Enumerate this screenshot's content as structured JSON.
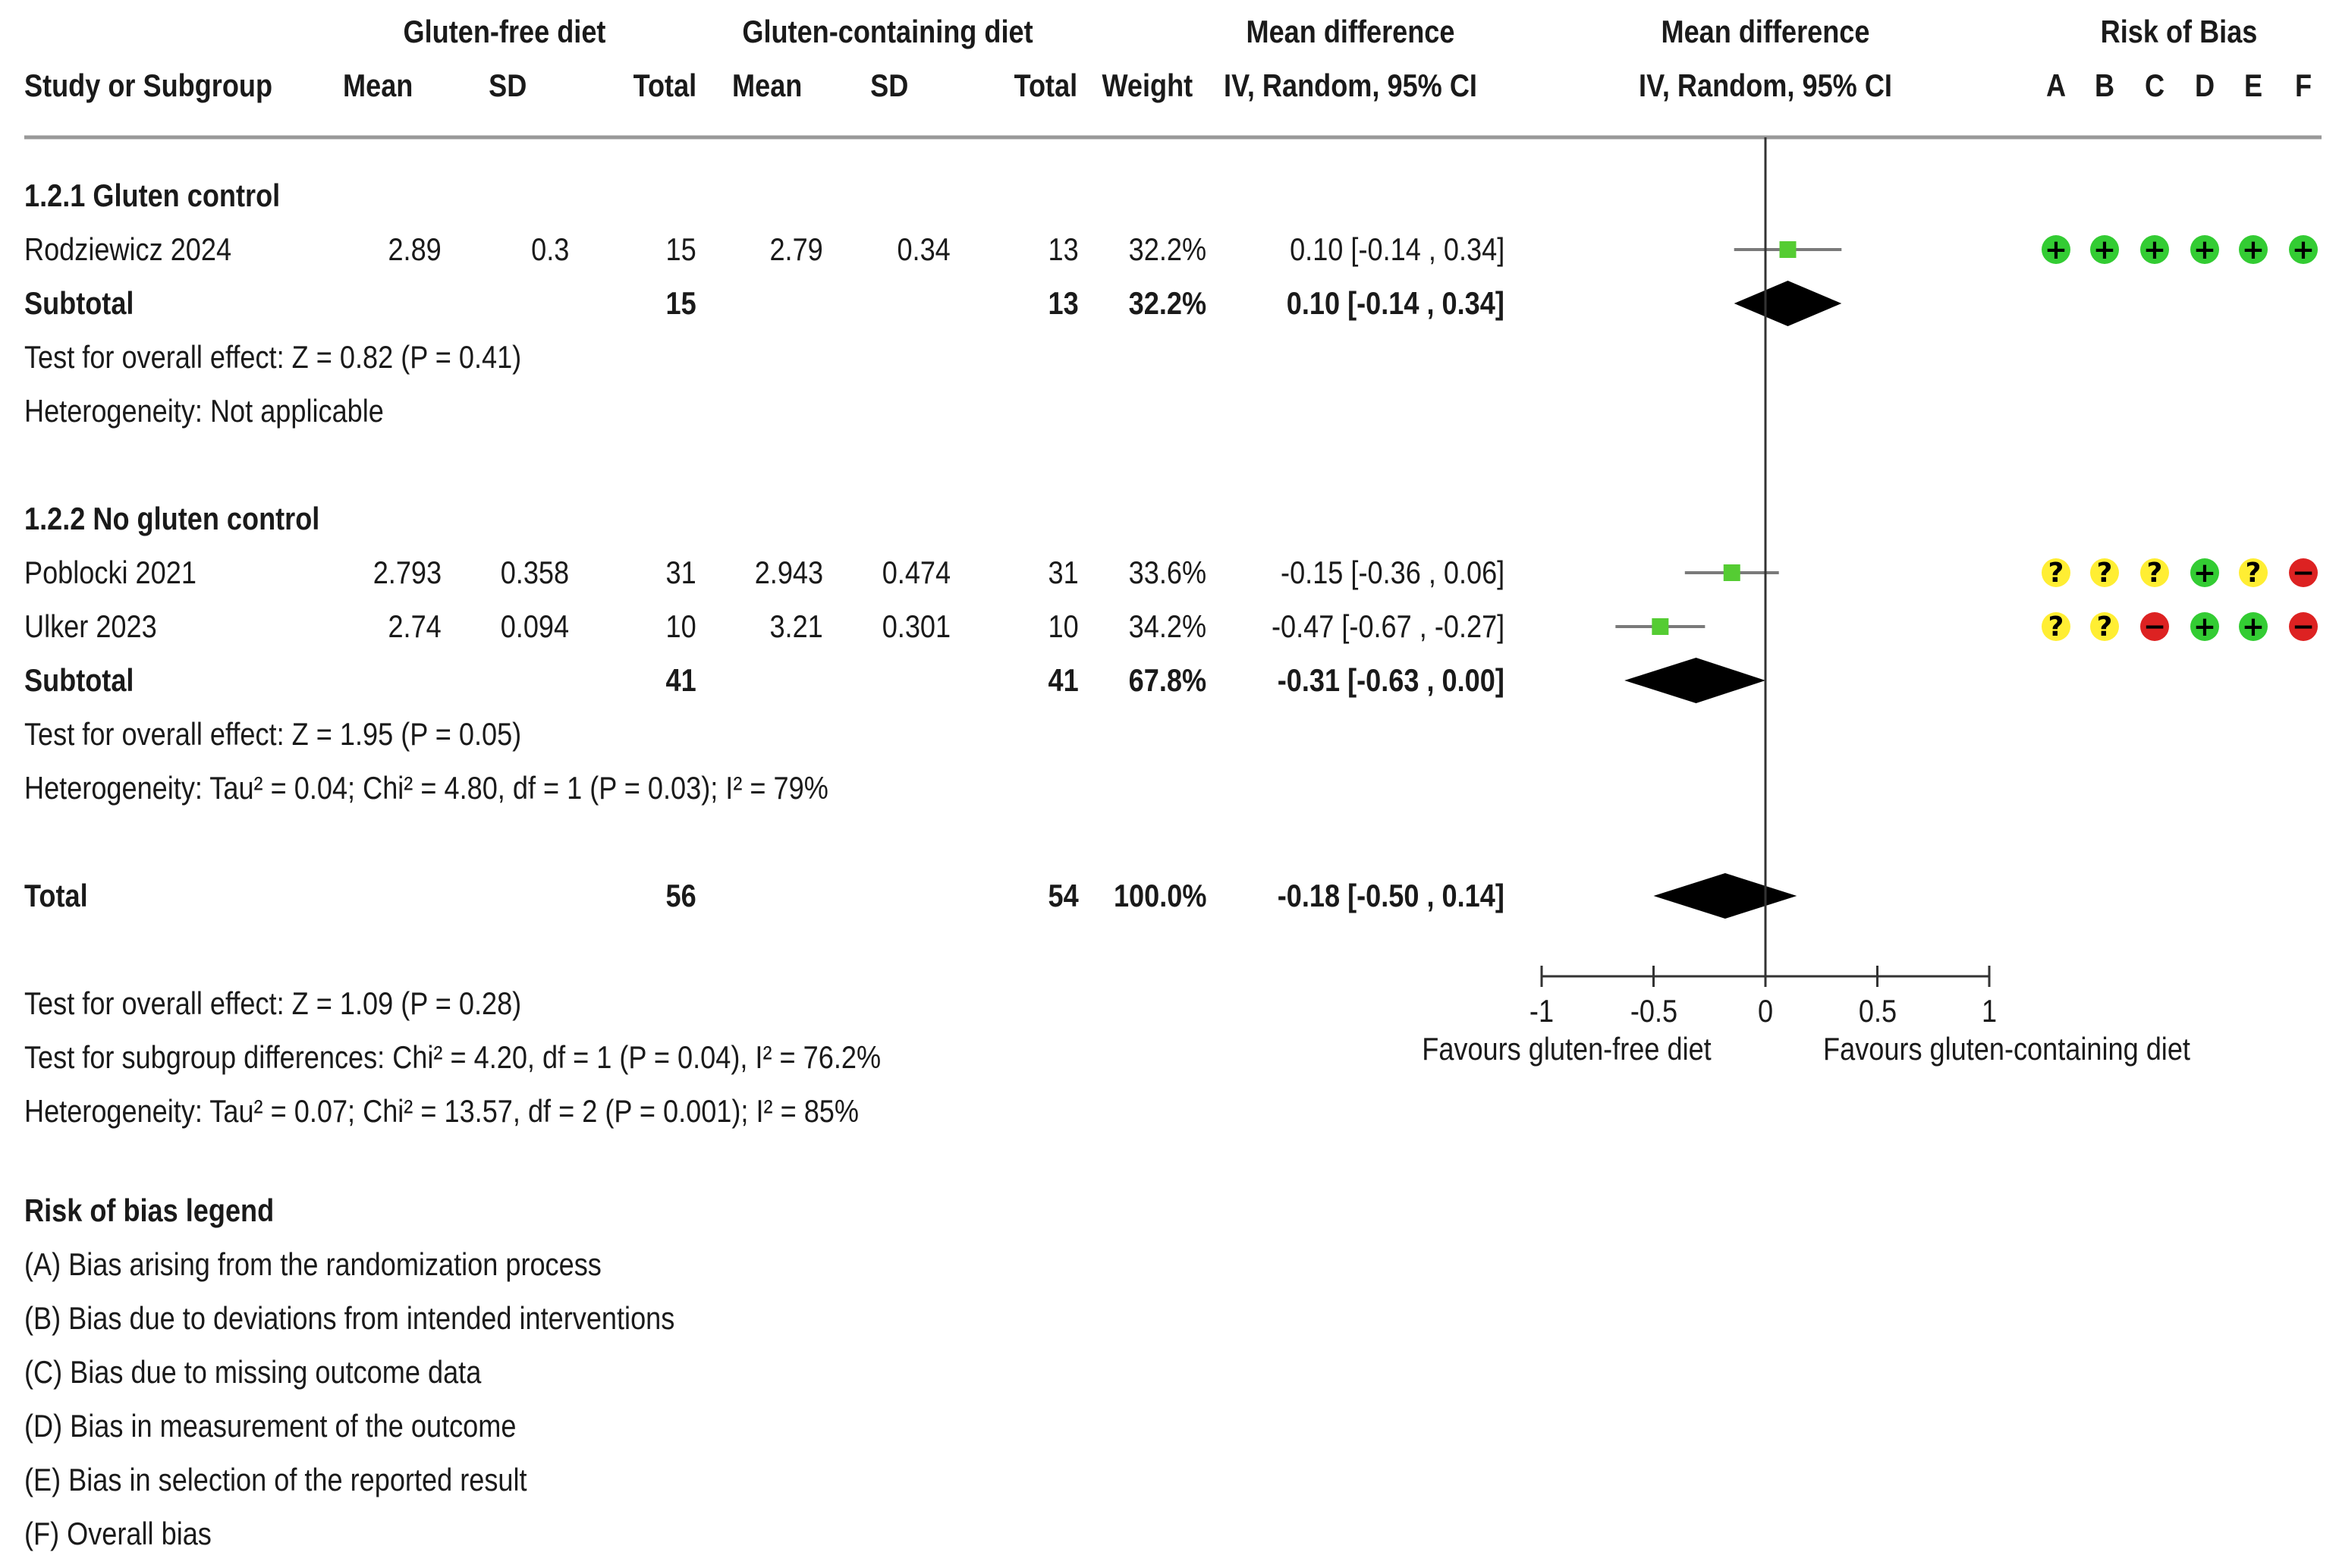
{
  "chart_data": {
    "type": "forest",
    "header": {
      "group1": "Gluten-free diet",
      "group2": "Gluten-containing diet",
      "md_top": "Mean difference",
      "md_top2": "Mean difference",
      "rob_title": "Risk of Bias",
      "study": "Study or Subgroup",
      "mean1": "Mean",
      "sd1": "SD",
      "total1": "Total",
      "mean2": "Mean",
      "sd2": "SD",
      "total2": "Total",
      "weight": "Weight",
      "md_sub": "IV, Random, 95% CI",
      "md_sub2": "IV, Random, 95% CI",
      "rob_letters": [
        "A",
        "B",
        "C",
        "D",
        "E",
        "F"
      ]
    },
    "subgroups": [
      {
        "title": "1.2.1 Gluten control",
        "studies": [
          {
            "name": "Rodziewicz 2024",
            "mean1": "2.89",
            "sd1": "0.3",
            "total1": "15",
            "mean2": "2.79",
            "sd2": "0.34",
            "total2": "13",
            "weight": "32.2%",
            "ci_text": "0.10 [-0.14 , 0.34]",
            "md": 0.1,
            "lo": -0.14,
            "hi": 0.34,
            "rob": [
              "+",
              "+",
              "+",
              "+",
              "+",
              "+"
            ]
          }
        ],
        "subtotal": {
          "label": "Subtotal",
          "total1": "15",
          "total2": "13",
          "weight": "32.2%",
          "ci_text": "0.10 [-0.14 , 0.34]",
          "md": 0.1,
          "lo": -0.14,
          "hi": 0.34
        },
        "overall": "Test for overall effect: Z = 0.82 (P = 0.41)",
        "heterogeneity": "Heterogeneity: Not applicable"
      },
      {
        "title": "1.2.2 No gluten control",
        "studies": [
          {
            "name": "Poblocki 2021",
            "mean1": "2.793",
            "sd1": "0.358",
            "total1": "31",
            "mean2": "2.943",
            "sd2": "0.474",
            "total2": "31",
            "weight": "33.6%",
            "ci_text": "-0.15 [-0.36 , 0.06]",
            "md": -0.15,
            "lo": -0.36,
            "hi": 0.06,
            "rob": [
              "?",
              "?",
              "?",
              "+",
              "?",
              "-"
            ]
          },
          {
            "name": "Ulker 2023",
            "mean1": "2.74",
            "sd1": "0.094",
            "total1": "10",
            "mean2": "3.21",
            "sd2": "0.301",
            "total2": "10",
            "weight": "34.2%",
            "ci_text": "-0.47 [-0.67 , -0.27]",
            "md": -0.47,
            "lo": -0.67,
            "hi": -0.27,
            "rob": [
              "?",
              "?",
              "-",
              "+",
              "+",
              "-"
            ]
          }
        ],
        "subtotal": {
          "label": "Subtotal",
          "total1": "41",
          "total2": "41",
          "weight": "67.8%",
          "ci_text": "-0.31 [-0.63 , 0.00]",
          "md": -0.31,
          "lo": -0.63,
          "hi": 0.0
        },
        "overall": "Test for overall effect: Z = 1.95 (P = 0.05)",
        "heterogeneity": "Heterogeneity: Tau² = 0.04; Chi² = 4.80, df = 1 (P = 0.03); I² = 79%"
      }
    ],
    "total": {
      "label": "Total",
      "total1": "56",
      "total2": "54",
      "weight": "100.0%",
      "ci_text": "-0.18 [-0.50 , 0.14]",
      "md": -0.18,
      "lo": -0.5,
      "hi": 0.14
    },
    "footer": [
      "Test for overall effect: Z = 1.09 (P = 0.28)",
      "Test for subgroup differences: Chi² = 4.20, df = 1 (P = 0.04), I² = 76.2%",
      "Heterogeneity: Tau² = 0.07; Chi² = 13.57, df = 2 (P = 0.001); I² = 85%"
    ],
    "axis": {
      "xlim": [
        -1,
        1
      ],
      "ticks": [
        -1,
        -0.5,
        0,
        0.5,
        1
      ],
      "tick_labels": [
        "-1",
        "-0.5",
        "0",
        "0.5",
        "1"
      ],
      "left_label": "Favours gluten-free diet",
      "right_label": "Favours gluten-containing diet"
    },
    "legend": {
      "title": "Risk of bias legend",
      "items": [
        "(A) Bias arising from the randomization process",
        "(B) Bias due to deviations from intended interventions",
        "(C) Bias due to missing outcome data",
        "(D) Bias in measurement of the outcome",
        "(E) Bias in selection of the reported result",
        "(F) Overall bias"
      ]
    },
    "colors": {
      "low": "#33cc33",
      "some": "#ffee33",
      "high": "#dd2222",
      "square": "#55cc33",
      "diamond": "#000000",
      "rule": "#999999"
    }
  }
}
